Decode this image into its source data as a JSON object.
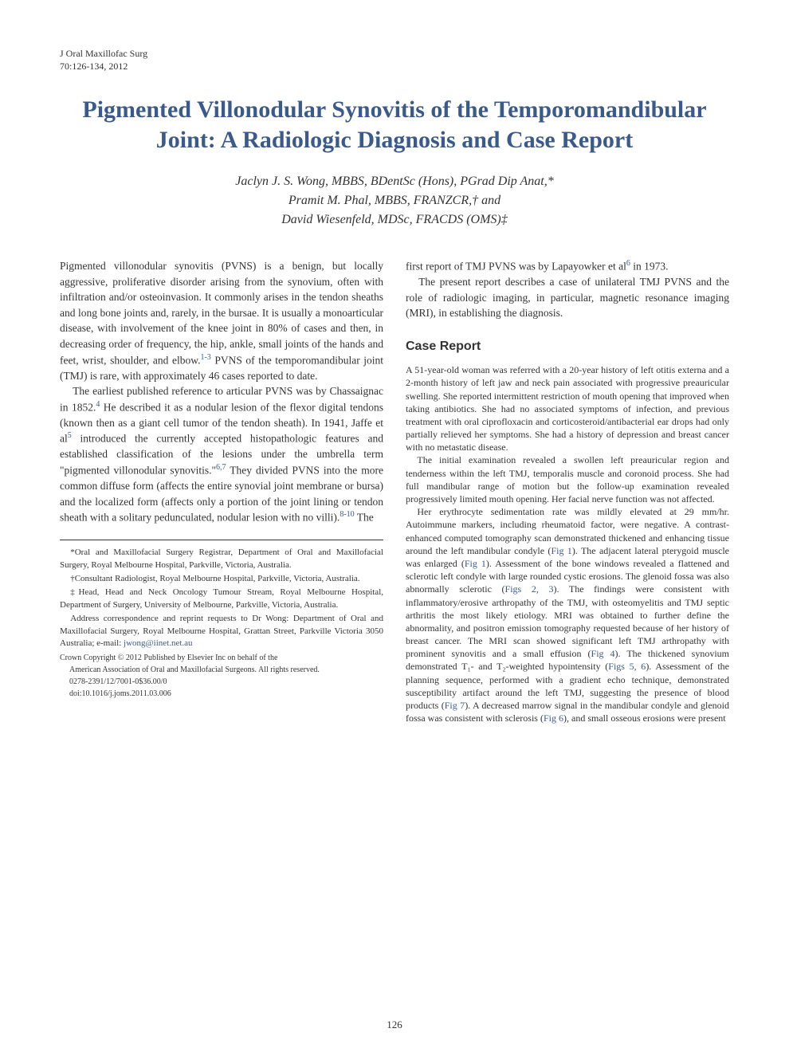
{
  "journal": {
    "name": "J Oral Maxillofac Surg",
    "citation": "70:126-134, 2012"
  },
  "title": "Pigmented Villonodular Synovitis of the Temporomandibular Joint: A Radiologic Diagnosis and Case Report",
  "authors": {
    "line1": "Jaclyn J. S. Wong, MBBS, BDentSc (Hons), PGrad Dip Anat,*",
    "line2": "Pramit M. Phal, MBBS, FRANZCR,† and",
    "line3": "David Wiesenfeld, MDSc, FRACDS (OMS)‡"
  },
  "intro": {
    "p1a": "Pigmented villonodular synovitis (PVNS) is a benign, but locally aggressive, proliferative disorder arising from the synovium, often with infiltration and/or osteoinvasion. It commonly arises in the tendon sheaths and long bone joints and, rarely, in the bursae. It is usually a monoarticular disease, with involvement of the knee joint in 80% of cases and then, in decreasing order of frequency, the hip, ankle, small joints of the hands and feet, wrist, shoulder, and elbow.",
    "p1_ref1": "1-3",
    "p1b": " PVNS of the temporomandibular joint (TMJ) is rare, with approximately 46 cases reported to date.",
    "p2a": "The earliest published reference to articular PVNS was by Chassaignac in 1852.",
    "p2_ref1": "4",
    "p2b": " He described it as a nodular lesion of the flexor digital tendons (known then as a giant cell tumor of the tendon sheath). In 1941, Jaffe et al",
    "p2_ref2": "5",
    "p2c": " introduced the currently accepted histopathologic features and established classification of the lesions under the umbrella term \"pigmented villonodular synovitis.\"",
    "p2_ref3": "6,7",
    "p2d": " They divided PVNS into the more common diffuse form (affects the entire synovial joint membrane or bursa) and the localized form (affects only a portion of the joint lining or tendon sheath with a solitary pedunculated, nodular lesion with no villi).",
    "p2_ref4": "8-10",
    "p2e": " The",
    "p2_cont_a": "first report of TMJ PVNS was by Lapayowker et al",
    "p2_cont_ref": "6",
    "p2_cont_b": " in 1973.",
    "p3": "The present report describes a case of unilateral TMJ PVNS and the role of radiologic imaging, in particular, magnetic resonance imaging (MRI), in establishing the diagnosis."
  },
  "case_report": {
    "heading": "Case Report",
    "p1": "A 51-year-old woman was referred with a 20-year history of left otitis externa and a 2-month history of left jaw and neck pain associated with progressive preauricular swelling. She reported intermittent restriction of mouth opening that improved when taking antibiotics. She had no associated symptoms of infection, and previous treatment with oral ciprofloxacin and corticosteroid/antibacterial ear drops had only partially relieved her symptoms. She had a history of depression and breast cancer with no metastatic disease.",
    "p2": "The initial examination revealed a swollen left preauricular region and tenderness within the left TMJ, temporalis muscle and coronoid process. She had full mandibular range of motion but the follow-up examination revealed progressively limited mouth opening. Her facial nerve function was not affected.",
    "p3a": "Her erythrocyte sedimentation rate was mildly elevated at 29 mm/hr. Autoimmune markers, including rheumatoid factor, were negative. A contrast-enhanced computed tomography scan demonstrated thickened and enhancing tissue around the left mandibular condyle (",
    "p3_fig1": "Fig 1",
    "p3b": "). The adjacent lateral pterygoid muscle was enlarged (",
    "p3_fig2": "Fig 1",
    "p3c": "). Assessment of the bone windows revealed a flattened and sclerotic left condyle with large rounded cystic erosions. The glenoid fossa was also abnormally sclerotic (",
    "p3_fig3": "Figs 2, 3",
    "p3d": "). The findings were consistent with inflammatory/erosive arthropathy of the TMJ, with osteomyelitis and TMJ septic arthritis the most likely etiology. MRI was obtained to further define the abnormality, and positron emission tomography requested because of her history of breast cancer. The MRI scan showed significant left TMJ arthropathy with prominent synovitis and a small effusion (",
    "p3_fig4": "Fig 4",
    "p3e": "). The thickened synovium demonstrated T₁- and T₂-weighted hypointensity (",
    "p3_fig5": "Figs 5, 6",
    "p3f": "). Assessment of the planning sequence, performed with a gradient echo technique, demonstrated susceptibility artifact around the left TMJ, suggesting the presence of blood products (",
    "p3_fig6": "Fig 7",
    "p3g": "). A decreased marrow signal in the mandibular condyle and glenoid fossa was consistent with sclerosis (",
    "p3_fig7": "Fig 6",
    "p3h": "), and small osseous erosions were present"
  },
  "footnotes": {
    "f1": "*Oral and Maxillofacial Surgery Registrar, Department of Oral and Maxillofacial Surgery, Royal Melbourne Hospital, Parkville, Victoria, Australia.",
    "f2": "†Consultant Radiologist, Royal Melbourne Hospital, Parkville, Victoria, Australia.",
    "f3": "‡Head, Head and Neck Oncology Tumour Stream, Royal Melbourne Hospital, Department of Surgery, University of Melbourne, Parkville, Victoria, Australia.",
    "f4a": "Address correspondence and reprint requests to Dr Wong: Department of Oral and Maxillofacial Surgery, Royal Melbourne Hospital, Grattan Street, Parkville Victoria 3050 Australia; e-mail: ",
    "f4_email": "jwong@iinet.net.au"
  },
  "copyright": {
    "c1": "Crown Copyright © 2012 Published by Elsevier Inc on behalf of the",
    "c2": "American Association of Oral and Maxillofacial Surgeons. All rights reserved.",
    "c3": "0278-2391/12/7001-0$36.00/0",
    "c4": "doi:10.1016/j.joms.2011.03.006"
  },
  "page_number": "126",
  "colors": {
    "link": "#3a5a8c",
    "text": "#333333",
    "background": "#ffffff"
  },
  "typography": {
    "body_font": "Georgia, Times New Roman, serif",
    "title_fontsize": 30,
    "author_fontsize": 16,
    "body_fontsize": 13.5,
    "case_fontsize": 12,
    "footnote_fontsize": 11
  }
}
